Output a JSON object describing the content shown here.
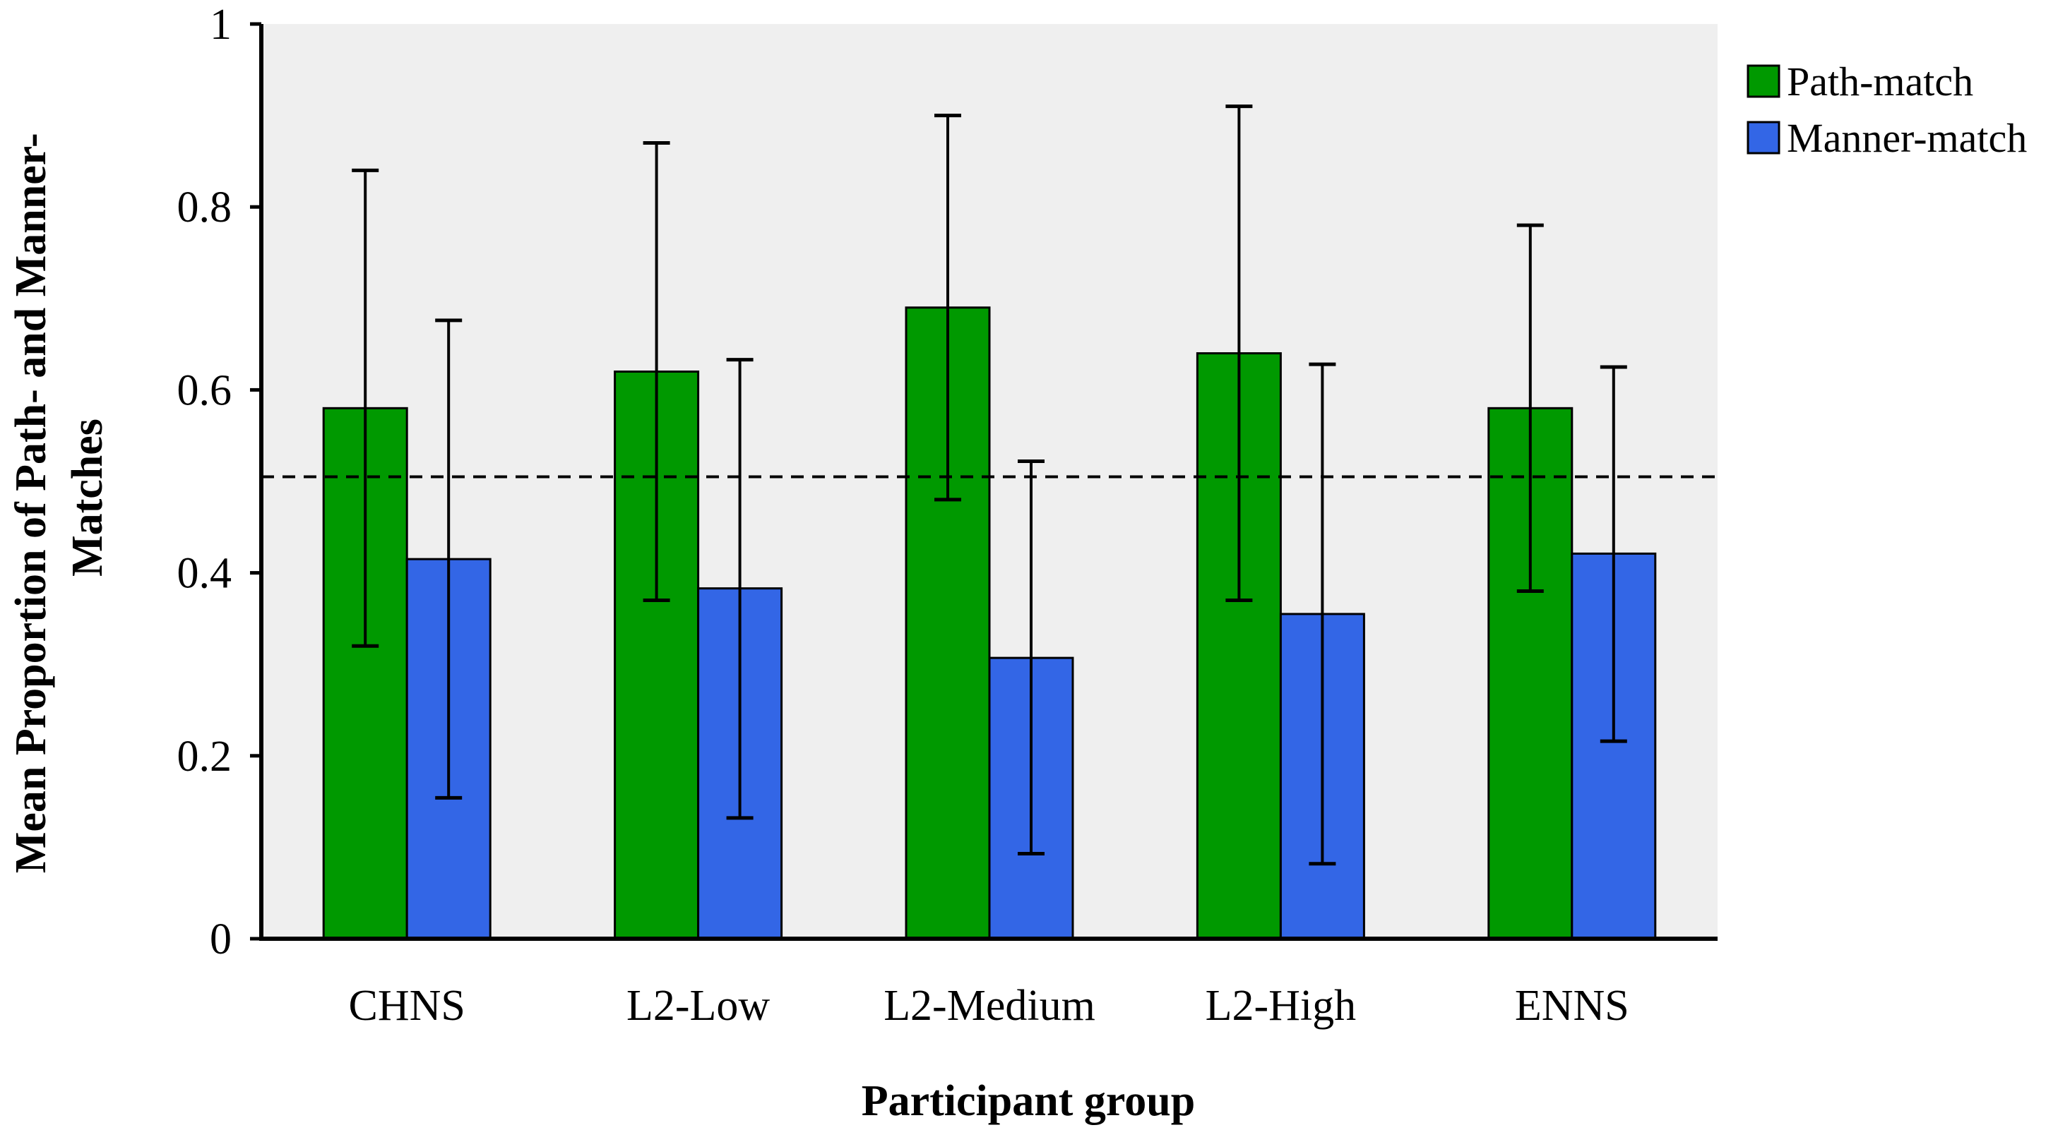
{
  "chart_data": {
    "type": "bar",
    "title": "",
    "xlabel": "Participant group",
    "ylabel_lines": [
      "Mean Proportion of Path- and Manner-",
      "Matches"
    ],
    "ylim": [
      0,
      1
    ],
    "yticks": [
      0,
      0.2,
      0.4,
      0.6,
      0.8,
      1
    ],
    "ytick_labels": [
      "0",
      "0.2",
      "0.4",
      "0.6",
      "0.8",
      "1"
    ],
    "categories": [
      "CHNS",
      "L2-Low",
      "L2-Medium",
      "L2-High",
      "ENNS"
    ],
    "series": [
      {
        "name": "Path-match",
        "color": "#009900",
        "values": [
          0.58,
          0.62,
          0.69,
          0.64,
          0.58
        ],
        "error_low": [
          0.32,
          0.37,
          0.48,
          0.37,
          0.38
        ],
        "error_high": [
          0.84,
          0.87,
          0.9,
          0.91,
          0.78
        ]
      },
      {
        "name": "Manner-match",
        "color": "#3366e6",
        "values": [
          0.415,
          0.383,
          0.307,
          0.355,
          0.421
        ],
        "error_low": [
          0.154,
          0.132,
          0.093,
          0.082,
          0.216
        ],
        "error_high": [
          0.676,
          0.633,
          0.522,
          0.628,
          0.625
        ]
      }
    ],
    "reference_line": {
      "value": 0.505,
      "style": "dashed"
    },
    "plot_background": "#efefef",
    "grid": false,
    "legend_position": "top-right"
  }
}
